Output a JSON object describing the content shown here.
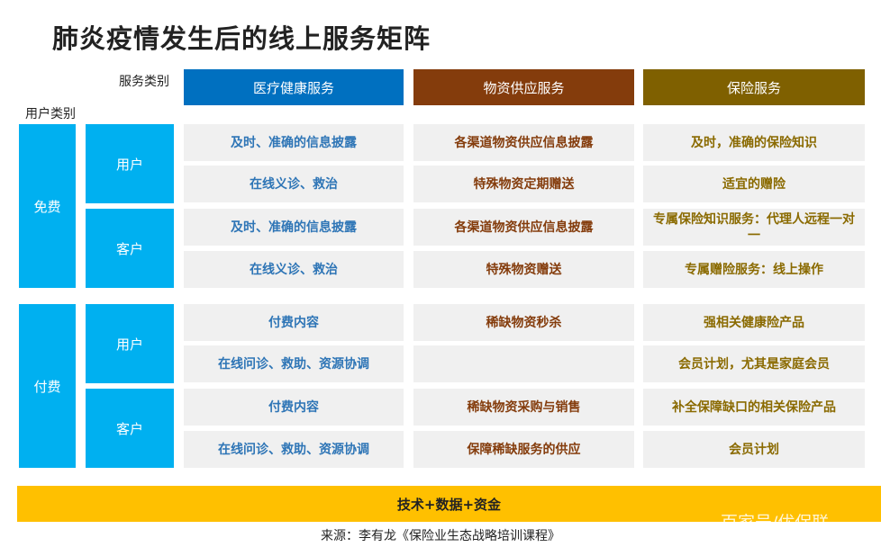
{
  "title": "肺炎疫情发生后的线上服务矩阵",
  "service_label": "服务类别",
  "user_label": "用户类别",
  "services": [
    {
      "label": "医疗健康服务",
      "color": "#0070c0",
      "text_color": "#2e75b6"
    },
    {
      "label": "物资供应服务",
      "color": "#843c0c",
      "text_color": "#843c0c"
    },
    {
      "label": "保险服务",
      "color": "#7f6000",
      "text_color": "#8a6a00"
    }
  ],
  "groups": [
    {
      "label": "免费",
      "subgroups": [
        {
          "label": "用户",
          "rows": [
            [
              "及时、准确的信息披露",
              "各渠道物资供应信息披露",
              "及时，准确的保险知识"
            ],
            [
              "在线义诊、救治",
              "特殊物资定期赠送",
              "适宜的赠险"
            ]
          ]
        },
        {
          "label": "客户",
          "rows": [
            [
              "及时、准确的信息披露",
              "各渠道物资供应信息披露",
              "专属保险知识服务：代理人远程一对一"
            ],
            [
              "在线义诊、救治",
              "特殊物资赠送",
              "专属赠险服务：线上操作"
            ]
          ]
        }
      ]
    },
    {
      "label": "付费",
      "subgroups": [
        {
          "label": "用户",
          "rows": [
            [
              "付费内容",
              "稀缺物资秒杀",
              "强相关健康险产品"
            ],
            [
              "在线问诊、救助、资源协调",
              "",
              "会员计划，尤其是家庭会员"
            ]
          ]
        },
        {
          "label": "客户",
          "rows": [
            [
              "付费内容",
              "稀缺物资采购与销售",
              "补全保障缺口的相关保险产品"
            ],
            [
              "在线问诊、救助、资源协调",
              "保障稀缺服务的供应",
              "会员计划"
            ]
          ]
        }
      ]
    }
  ],
  "foundation": "技术+数据+资金",
  "source": "来源：李有龙《保险业生态战略培训课程》",
  "watermark": "百家号/优保联"
}
